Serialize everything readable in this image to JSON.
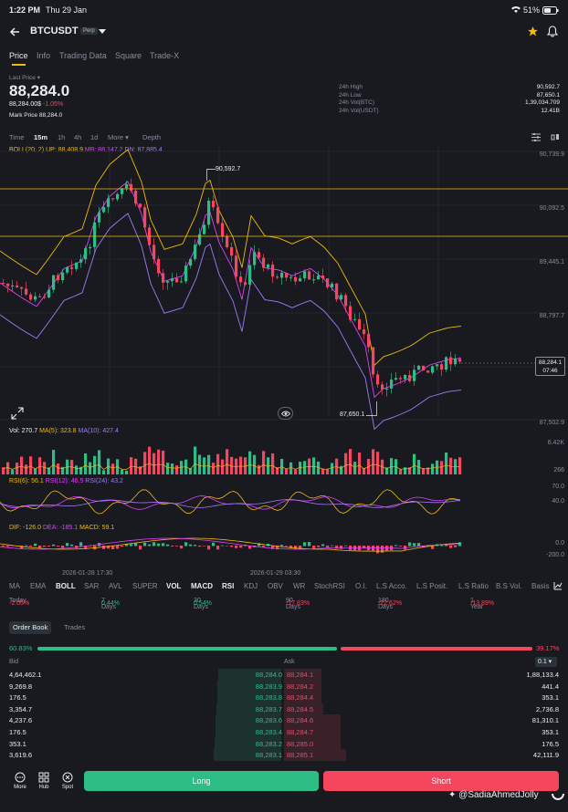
{
  "status_bar": {
    "time": "1:22 PM",
    "date": "Thu 29 Jan",
    "battery": "51%"
  },
  "header": {
    "back_icon": "back-arrow-icon",
    "symbol": "BTCUSDT",
    "badge": "Perp",
    "star_icon": "star-icon",
    "bell_icon": "bell-icon"
  },
  "tabs": [
    "Price",
    "Info",
    "Trading Data",
    "Square",
    "Trade-X"
  ],
  "price": {
    "label": "Last Price",
    "last": "88,284.0",
    "usd": "88,284.00$",
    "change": "-1.05%",
    "mark_label": "Mark Price",
    "mark": "88,284.0"
  },
  "stats": [
    {
      "label": "24h High",
      "value": "90,592.7"
    },
    {
      "label": "24h Low",
      "value": "87,650.1"
    },
    {
      "label": "24h Vol(BTC)",
      "value": "1,39,034.709"
    },
    {
      "label": "24h Vol(USDT)",
      "value": "12.41B"
    }
  ],
  "intervals": [
    "Time",
    "15m",
    "1h",
    "4h",
    "1d",
    "More",
    "Depth"
  ],
  "boll": {
    "name": "BOLL(20, 2)",
    "up": "UP: 88,408.9",
    "mb": "MB: 88,147.2",
    "dn": "DN: 87,885.4"
  },
  "price_axis": [
    "90,739.9",
    "90,092.5",
    "89,445.1",
    "88,797.7",
    "87,502.9"
  ],
  "current_tag": {
    "price": "88,284.1",
    "countdown": "07:46"
  },
  "high_label": "90,592.7",
  "low_label": "87,650.1",
  "vol": {
    "vol": "Vol: 270.7",
    "ma5": "MA(5): 323.8",
    "ma10": "MA(10): 427.4",
    "axis_top": "6.42K",
    "axis_bottom": "266"
  },
  "rsi": {
    "rsi6": "RSI(6): 56.1",
    "rsi12": "RSI(12): 46.5",
    "rsi24": "RSI(24): 43.2",
    "axis_top": "70.0",
    "axis_bottom": "40.0"
  },
  "macd": {
    "dif": "DIF: -126.0",
    "dea": "DEA: -185.1",
    "macd": "MACD: 59.1",
    "axis_top": "0.0",
    "axis_bottom": "-200.0"
  },
  "time_axis": [
    "2026-01-28 17:30",
    "2026-01-29 03:30"
  ],
  "indicators": [
    "MA",
    "EMA",
    "BOLL",
    "SAR",
    "AVL",
    "SUPER",
    "VOL",
    "MACD",
    "RSI",
    "KDJ",
    "OBV",
    "WR",
    "StochRSI",
    "O.I.",
    "L.S Acco.",
    "L.S Posit.",
    "L.S Ratio",
    "B.S Vol.",
    "Basis"
  ],
  "performance": [
    {
      "label": "Today",
      "value": "-2.05%"
    },
    {
      "label": "7 Days",
      "value": "0.44%"
    },
    {
      "label": "30 Days",
      "value": "0.54%"
    },
    {
      "label": "90 Days",
      "value": "-17.83%"
    },
    {
      "label": "180 Days",
      "value": "-22.62%"
    },
    {
      "label": "1 Year",
      "value": "-13.89%"
    }
  ],
  "book_tabs": [
    "Order Book",
    "Trades"
  ],
  "ratio": {
    "buy": "60.83%",
    "sell": "39.17%",
    "buy_fraction": 0.6083
  },
  "book_headers": {
    "bid": "Bid",
    "ask": "Ask",
    "tick": "0.1"
  },
  "order_book": [
    {
      "bid_qty": "4,64,462.1",
      "bid_price": "88,284.0",
      "ask_price": "88,284.1",
      "ask_qty": "1,88,133.4",
      "bid_depth": 0.74,
      "ask_depth": 0.24
    },
    {
      "bid_qty": "9,269.8",
      "bid_price": "88,283.9",
      "ask_price": "88,284.2",
      "ask_qty": "441.4",
      "bid_depth": 0.75,
      "ask_depth": 0.24
    },
    {
      "bid_qty": "176.5",
      "bid_price": "88,283.8",
      "ask_price": "88,284.4",
      "ask_qty": "353.1",
      "bid_depth": 0.75,
      "ask_depth": 0.24
    },
    {
      "bid_qty": "3,354.7",
      "bid_price": "88,283.7",
      "ask_price": "88,284.5",
      "ask_qty": "2,736.8",
      "bid_depth": 0.76,
      "ask_depth": 0.25
    },
    {
      "bid_qty": "4,237.6",
      "bid_price": "88,283.6",
      "ask_price": "88,284.6",
      "ask_qty": "81,310.1",
      "bid_depth": 0.77,
      "ask_depth": 0.36
    },
    {
      "bid_qty": "176.5",
      "bid_price": "88,283.4",
      "ask_price": "88,284.7",
      "ask_qty": "353.1",
      "bid_depth": 0.77,
      "ask_depth": 0.36
    },
    {
      "bid_qty": "353.1",
      "bid_price": "88,283.2",
      "ask_price": "88,285.0",
      "ask_qty": "176.5",
      "bid_depth": 0.78,
      "ask_depth": 0.36
    },
    {
      "bid_qty": "3,619.6",
      "bid_price": "88,283.1",
      "ask_price": "88,285.1",
      "ask_qty": "42,111.9",
      "bid_depth": 0.79,
      "ask_depth": 0.4
    }
  ],
  "bottom_nav": [
    "More",
    "Hub",
    "Spot"
  ],
  "actions": {
    "long": "Long",
    "short": "Short"
  },
  "watermark": "@SadiaAhmedJolly",
  "colors": {
    "up": "#2ebd85",
    "down": "#f6465d",
    "accent": "#f0b90b",
    "background": "#181a20"
  }
}
